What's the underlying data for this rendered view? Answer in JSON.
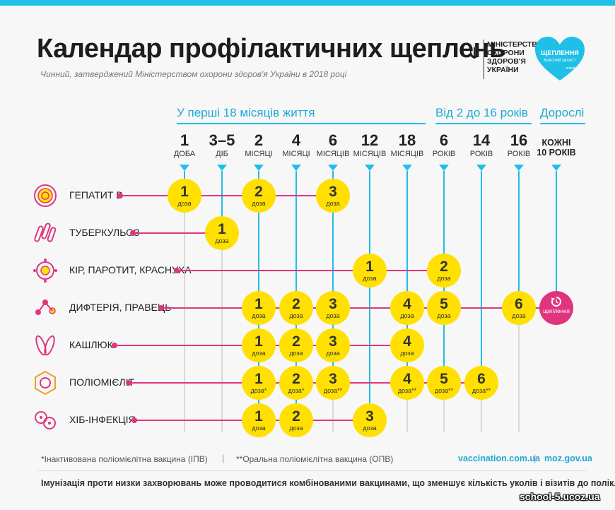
{
  "header": {
    "title": "Календар профілактичних щеплень",
    "subtitle": "Чинний, затверджений Міністерством охорони здоров'я України в 2018 році",
    "ministry_logo_text": "МІНІСТЕРСТВО\nОХОРОНИ\nЗДОРОВ'Я\nУКРАЇНИ",
    "partner_logo_text": "ЩЕПЛЕННЯ",
    "partner_logo_sub": "ВЧАСНИЙ ЗАХИСТ",
    "partner_logo_brand": "unicef"
  },
  "sections": {
    "first_18_months": "У перші 18 місяців життя",
    "years_2_16": "Від 2 до 16 років",
    "adults": "Дорослі"
  },
  "columns": [
    {
      "num": "1",
      "unit": "ДОБА"
    },
    {
      "num": "3–5",
      "unit": "ДІБ"
    },
    {
      "num": "2",
      "unit": "МІСЯЦІ"
    },
    {
      "num": "4",
      "unit": "МІСЯЦІ"
    },
    {
      "num": "6",
      "unit": "МІСЯЦІВ"
    },
    {
      "num": "12",
      "unit": "МІСЯЦІВ"
    },
    {
      "num": "18",
      "unit": "МІСЯЦІВ"
    },
    {
      "num": "6",
      "unit": "РОКІВ"
    },
    {
      "num": "14",
      "unit": "РОКІВ"
    },
    {
      "num": "16",
      "unit": "РОКІВ"
    }
  ],
  "adult_column": {
    "line1": "КОЖНІ",
    "line2": "10 РОКІВ"
  },
  "dose_word": "доза",
  "rows": [
    {
      "label": "ГЕПАТИТ В",
      "icon": "hepatitis-virus-icon",
      "doses": [
        {
          "col": 0,
          "n": "1",
          "d": "доза"
        },
        {
          "col": 2,
          "n": "2",
          "d": "доза"
        },
        {
          "col": 4,
          "n": "3",
          "d": "доза"
        }
      ]
    },
    {
      "label": "ТУБЕРКУЛЬОЗ",
      "icon": "tuberculosis-bacteria-icon",
      "doses": [
        {
          "col": 1,
          "n": "1",
          "d": "доза"
        }
      ]
    },
    {
      "label": "КІР, ПАРОТИТ, КРАСНУХА",
      "icon": "measles-virus-icon",
      "doses": [
        {
          "col": 5,
          "n": "1",
          "d": "доза"
        },
        {
          "col": 7,
          "n": "2",
          "d": "доза"
        }
      ]
    },
    {
      "label": "ДИФТЕРІЯ, ПРАВЕЦЬ",
      "icon": "diphtheria-bacteria-icon",
      "doses": [
        {
          "col": 2,
          "n": "1",
          "d": "доза"
        },
        {
          "col": 3,
          "n": "2",
          "d": "доза"
        },
        {
          "col": 4,
          "n": "3",
          "d": "доза"
        },
        {
          "col": 6,
          "n": "4",
          "d": "доза"
        },
        {
          "col": 7,
          "n": "5",
          "d": "доза"
        },
        {
          "col": 9,
          "n": "6",
          "d": "доза"
        }
      ],
      "adult": "щеплення"
    },
    {
      "label": "КАШЛЮК",
      "icon": "pertussis-bacteria-icon",
      "doses": [
        {
          "col": 2,
          "n": "1",
          "d": "доза"
        },
        {
          "col": 3,
          "n": "2",
          "d": "доза"
        },
        {
          "col": 4,
          "n": "3",
          "d": "доза"
        },
        {
          "col": 6,
          "n": "4",
          "d": "доза"
        }
      ]
    },
    {
      "label": "ПОЛІОМІЄЛІТ",
      "icon": "polio-virus-icon",
      "doses": [
        {
          "col": 2,
          "n": "1",
          "d": "доза*"
        },
        {
          "col": 3,
          "n": "2",
          "d": "доза*"
        },
        {
          "col": 4,
          "n": "3",
          "d": "доза**"
        },
        {
          "col": 6,
          "n": "4",
          "d": "доза**"
        },
        {
          "col": 7,
          "n": "5",
          "d": "доза**"
        },
        {
          "col": 8,
          "n": "6",
          "d": "доза**"
        }
      ]
    },
    {
      "label": "ХІБ-ІНФЕКЦІЯ",
      "icon": "hib-bacteria-icon",
      "doses": [
        {
          "col": 2,
          "n": "1",
          "d": "доза"
        },
        {
          "col": 3,
          "n": "2",
          "d": "доза"
        },
        {
          "col": 5,
          "n": "3",
          "d": "доза"
        }
      ]
    }
  ],
  "footer": {
    "note_ipv": "*Інактивована поліомієлітна вакцина (ІПВ)",
    "separator": "|",
    "note_opv": "**Оральна поліомієлітна вакцина (ОПВ)",
    "link1": "vaccination.com.ua",
    "link2": "moz.gov.ua",
    "bottom": "Імунізація проти низки захворювань може проводитися комбінованими вакцинами, що зменшує кількість уколів і візитів до поліклінік.",
    "watermark": "school-5.ucoz.ua"
  },
  "colors": {
    "accent_blue": "#1fbfe6",
    "dose_yellow": "#ffe000",
    "disease_pink": "#e0357e"
  }
}
